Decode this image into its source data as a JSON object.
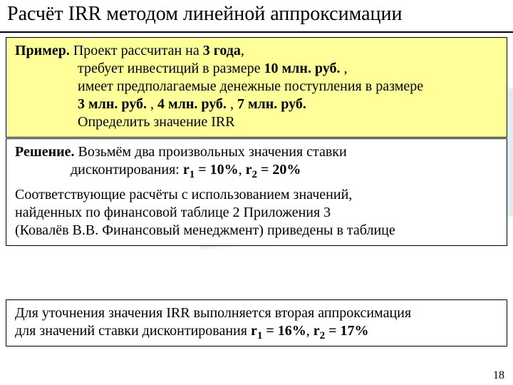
{
  "colors": {
    "slide_bg": "#ffffff",
    "highlight_bg": "#ffff9a",
    "rule": "#000000",
    "sweep": "#cfe5f2"
  },
  "fonts": {
    "title_size_pt": 21,
    "body_size_pt": 15,
    "family": "Times New Roman"
  },
  "header": {
    "title": "Расчёт IRR методом линейной аппроксимации"
  },
  "example": {
    "label": "Пример.",
    "line1_rest": " Проект рассчитан на ",
    "years_bold": "3 года",
    "line1_tail": ",",
    "line2": "требует инвестиций в размере ",
    "invest_bold": "10 млн. руб.",
    "line2_tail": " ,",
    "line3a": "имеет предполагаемые денежные поступления в размере",
    "cf1": "3 млн. руб.",
    "sep": " , ",
    "cf2": "4 млн. руб.",
    "cf3": "7 млн. руб.",
    "line5": "Определить значение IRR"
  },
  "solution": {
    "label": "Решение.",
    "line1_rest": " Возьмём два произвольных значения ставки",
    "line2a": "дисконтирования: ",
    "r1_label": "r",
    "r1_sub": "1",
    "r1_val": " = 10%",
    "comma": ", ",
    "r2_label": "r",
    "r2_sub": "2",
    "r2_val": " = 20%",
    "para2_l1": "Соответствующие расчёты с использованием значений,",
    "para2_l2": "найденных по финансовой таблице 2 Приложения 3",
    "para2_l3": "(Ковалёв В.В. Финансовый менеджмент) приведены в таблице"
  },
  "refine": {
    "line1": "Для уточнения значения IRR выполняется вторая аппроксимация",
    "line2a": "для значений ставки дисконтирования ",
    "r1_label": "r",
    "r1_sub": "1",
    "r1_val": " = 16%",
    "comma": ", ",
    "r2_label": "r",
    "r2_sub": "2",
    "r2_val": " = 17%"
  },
  "page_number": "18"
}
